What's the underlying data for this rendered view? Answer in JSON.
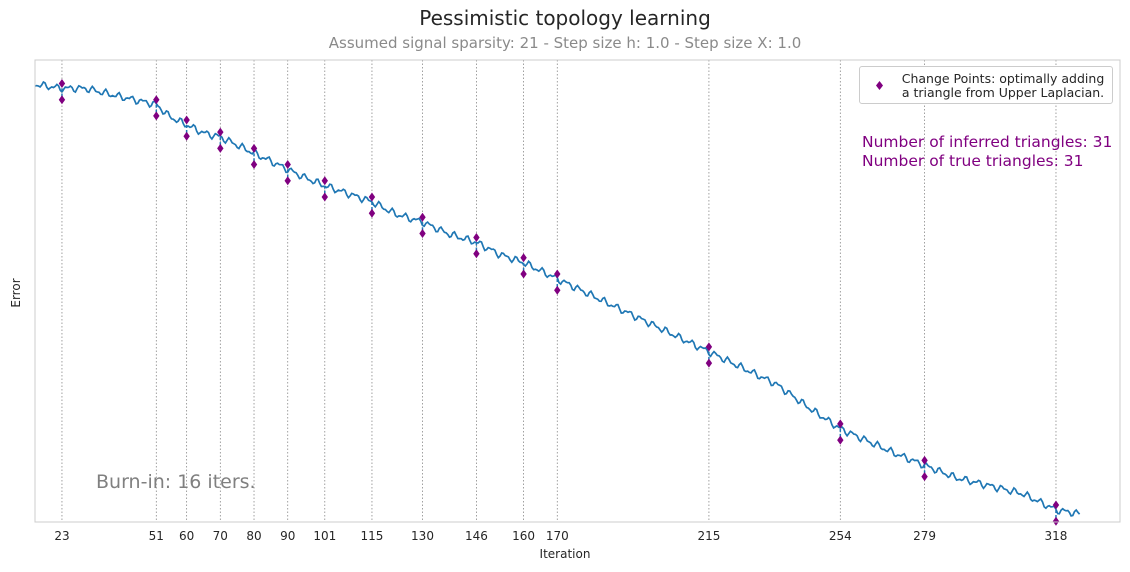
{
  "chart_data": {
    "type": "line",
    "title": "Pessimistic topology learning",
    "subtitle": "Assumed signal sparsity: 21  -  Step size h: 1.0  -  Step size X: 1.0",
    "xlabel": "Iteration",
    "ylabel": "Error",
    "xlim": [
      15,
      337
    ],
    "y_axis_ticks_shown": false,
    "grid": "dotted vertical lines at change points",
    "legend_position": "top-right",
    "legend": {
      "label_line1": "Change Points: optimally adding",
      "label_line2": "a triangle from Upper Laplacian."
    },
    "x_tick_labels": [
      23,
      51,
      60,
      70,
      80,
      90,
      101,
      115,
      130,
      146,
      160,
      170,
      215,
      254,
      279,
      318
    ],
    "change_points": [
      23,
      51,
      60,
      70,
      80,
      90,
      101,
      115,
      130,
      146,
      160,
      170,
      215,
      254,
      279,
      318
    ],
    "error_curve_points": {
      "x": [
        15,
        23,
        30,
        40,
        51,
        55,
        60,
        65,
        70,
        75,
        80,
        85,
        90,
        95,
        101,
        108,
        115,
        122,
        130,
        138,
        146,
        153,
        160,
        165,
        170,
        180,
        190,
        200,
        215,
        225,
        235,
        245,
        254,
        262,
        270,
        279,
        288,
        298,
        308,
        318,
        325
      ],
      "y": [
        0.0,
        0.01,
        0.01,
        0.03,
        0.05,
        0.08,
        0.1,
        0.12,
        0.13,
        0.15,
        0.17,
        0.19,
        0.21,
        0.23,
        0.25,
        0.27,
        0.29,
        0.32,
        0.34,
        0.37,
        0.39,
        0.42,
        0.44,
        0.46,
        0.48,
        0.52,
        0.56,
        0.6,
        0.66,
        0.7,
        0.74,
        0.8,
        0.85,
        0.88,
        0.91,
        0.94,
        0.97,
        0.99,
        1.01,
        1.05,
        1.06
      ]
    },
    "annotations": {
      "inferred": "Number of inferred triangles: 31",
      "true": "Number of true triangles: 31",
      "burnin": "Burn-in: 16 iters."
    }
  },
  "colors": {
    "line": "#1f77b4",
    "change_point_marker": "#800080",
    "grid": "#8a8a8a",
    "annotation": "#800080",
    "burnin_text": "#808080"
  }
}
